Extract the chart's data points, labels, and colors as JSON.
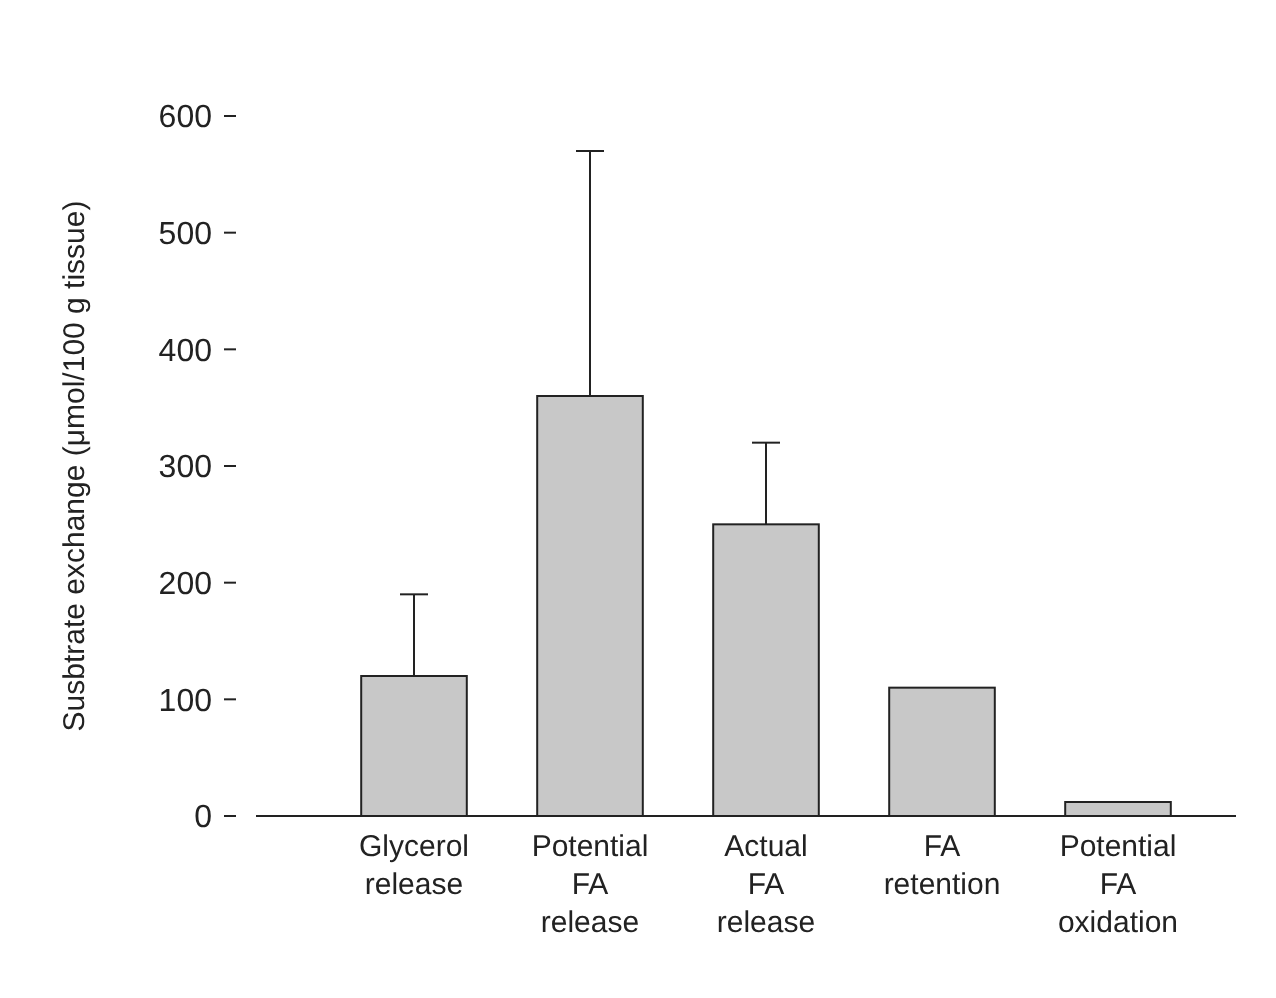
{
  "chart_data": {
    "type": "bar",
    "ylabel": "Susbtrate exchange (μmol/100 g tissue)",
    "categories": [
      "Glycerol\nrelease",
      "Potential\nFA\nrelease",
      "Actual\nFA\nrelease",
      "FA\nretention",
      "Potential\nFA\noxidation"
    ],
    "values": [
      120,
      360,
      250,
      110,
      12
    ],
    "errors": [
      [
        120,
        190
      ],
      [
        360,
        570
      ],
      [
        250,
        320
      ],
      null,
      null
    ],
    "color": "#c8c8c8",
    "ylim": [
      0,
      600
    ],
    "yticks": [
      0,
      100,
      200,
      300,
      400,
      500,
      600
    ],
    "grid": false
  }
}
